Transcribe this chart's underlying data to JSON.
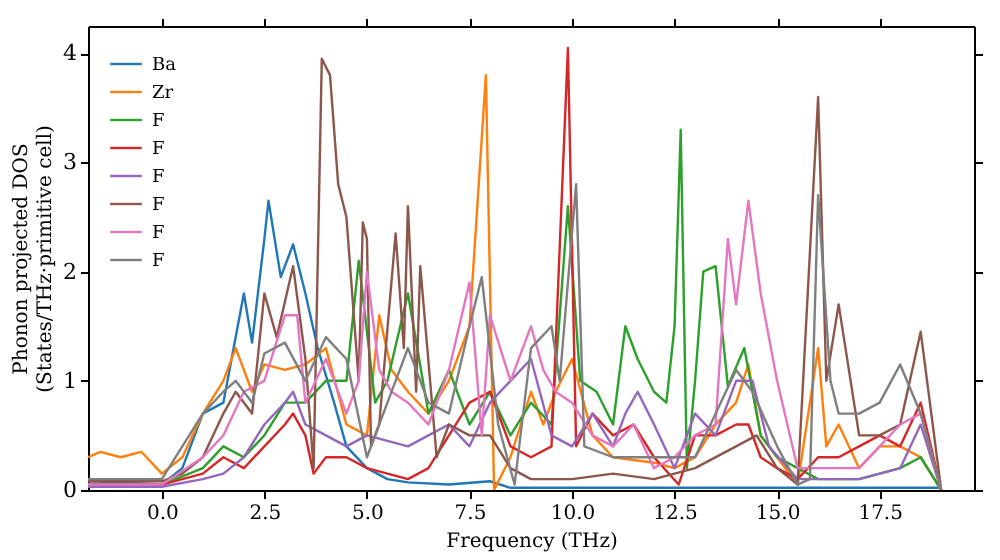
{
  "chart_data": {
    "type": "line",
    "xlabel": "Frequency (THz)",
    "ylabel": "Phonon projected DOS\n(States/THz·primitive cell)",
    "xlim": [
      -1.8,
      19.8
    ],
    "ylim": [
      0,
      4.25
    ],
    "xticks": [
      {
        "value": 0,
        "label": "0.0"
      },
      {
        "value": 2.5,
        "label": "2.5"
      },
      {
        "value": 5,
        "label": "5.0"
      },
      {
        "value": 7.5,
        "label": "7.5"
      },
      {
        "value": 10,
        "label": "10.0"
      },
      {
        "value": 12.5,
        "label": "12.5"
      },
      {
        "value": 15,
        "label": "15.0"
      },
      {
        "value": 17.5,
        "label": "17.5"
      }
    ],
    "yticks": [
      0,
      1,
      2,
      3,
      4
    ],
    "grid": false,
    "legend": "top left",
    "marker": "none",
    "line_style": "solid",
    "series": [
      {
        "name": "Ba",
        "color": "#1f77b4",
        "x": [
          -1.8,
          -1,
          0,
          0.5,
          1,
          1.5,
          2,
          2.2,
          2.5,
          2.6,
          2.9,
          3.2,
          3.5,
          3.8,
          4.2,
          4.5,
          5,
          5.5,
          6,
          7,
          8,
          8.5,
          9,
          12,
          19
        ],
        "values": [
          0.08,
          0.07,
          0.05,
          0.2,
          0.7,
          0.8,
          1.8,
          1.35,
          2.3,
          2.65,
          1.95,
          2.25,
          1.8,
          1.3,
          0.8,
          0.4,
          0.2,
          0.1,
          0.07,
          0.05,
          0.08,
          0.02,
          0.02,
          0.02,
          0.02
        ]
      },
      {
        "name": "Zr",
        "color": "#ff7f0e",
        "x": [
          -1.8,
          -1.5,
          -1,
          -0.5,
          0,
          0.5,
          1,
          1.5,
          1.8,
          2.2,
          2.5,
          3,
          3.5,
          4,
          4.5,
          5,
          5.3,
          5.6,
          6,
          6.5,
          7,
          7.5,
          7.9,
          8.1,
          8.5,
          9,
          9.3,
          9.6,
          10,
          10.5,
          11,
          12,
          12.5,
          13,
          13.5,
          14,
          14.3,
          14.6,
          15,
          15.5,
          16,
          16.2,
          16.5,
          17,
          17.5,
          18,
          18.5,
          19
        ],
        "values": [
          0.3,
          0.35,
          0.3,
          0.35,
          0.15,
          0.3,
          0.7,
          1.0,
          1.3,
          0.9,
          1.15,
          1.1,
          1.15,
          1.3,
          0.6,
          0.5,
          1.6,
          1.1,
          0.9,
          0.7,
          1.0,
          1.5,
          3.8,
          0.0,
          0.3,
          0.9,
          0.6,
          0.9,
          1.2,
          0.5,
          0.3,
          0.25,
          0.2,
          0.3,
          0.6,
          0.8,
          1.15,
          0.5,
          0.3,
          0.05,
          1.3,
          0.4,
          0.6,
          0.2,
          0.4,
          0.4,
          0.3,
          0
        ]
      },
      {
        "name": "F",
        "color": "#2ca02c",
        "x": [
          -1.8,
          0,
          1,
          1.5,
          2,
          2.5,
          3,
          3.5,
          4,
          4.5,
          4.8,
          5.2,
          5.5,
          6,
          6.5,
          7,
          7.5,
          8,
          8.5,
          9,
          9.5,
          9.9,
          10.2,
          10.6,
          11,
          11.3,
          11.6,
          12,
          12.3,
          12.5,
          12.65,
          12.8,
          13,
          13.2,
          13.5,
          13.8,
          14.2,
          14.6,
          15,
          15.5,
          16,
          17,
          18,
          18.5,
          19
        ],
        "values": [
          0.05,
          0.05,
          0.2,
          0.4,
          0.3,
          0.5,
          0.8,
          0.8,
          1.0,
          1.0,
          2.1,
          0.8,
          1.0,
          1.8,
          0.7,
          1.1,
          0.6,
          0.9,
          0.5,
          0.8,
          0.6,
          2.6,
          1.0,
          0.9,
          0.6,
          1.5,
          1.2,
          0.9,
          0.8,
          1.5,
          3.3,
          0.2,
          1.0,
          2.0,
          2.05,
          0.95,
          1.3,
          0.5,
          0.3,
          0.2,
          0.1,
          0.1,
          0.2,
          0.3,
          0
        ]
      },
      {
        "name": "F",
        "color": "#d62728",
        "x": [
          -1.8,
          0,
          1,
          1.5,
          2,
          2.5,
          3,
          3.2,
          3.5,
          3.7,
          4,
          4.5,
          5,
          6,
          6.5,
          7,
          7.5,
          8,
          8.5,
          9,
          9.5,
          9.9,
          10.1,
          10.5,
          11,
          11.5,
          12,
          12.6,
          13,
          13.5,
          14,
          14.3,
          14.6,
          15,
          15.5,
          16,
          16.5,
          17,
          17.5,
          18,
          18.5,
          19
        ],
        "values": [
          0.05,
          0.05,
          0.15,
          0.3,
          0.2,
          0.4,
          0.6,
          0.7,
          0.5,
          0.15,
          0.3,
          0.3,
          0.2,
          0.1,
          0.2,
          0.5,
          0.8,
          0.9,
          0.4,
          0.3,
          0.4,
          4.05,
          0.4,
          0.7,
          0.5,
          0.6,
          0.3,
          0.05,
          0.5,
          0.5,
          0.6,
          0.6,
          0.3,
          0.2,
          0.1,
          0.3,
          0.3,
          0.4,
          0.5,
          0.4,
          0.8,
          0
        ]
      },
      {
        "name": "F",
        "color": "#9467bd",
        "x": [
          -1.8,
          0,
          1,
          1.5,
          2,
          2.5,
          3,
          3.2,
          3.5,
          4,
          4.5,
          5,
          6,
          6.5,
          7,
          7.5,
          8,
          8.5,
          9,
          9.5,
          10,
          10.5,
          11,
          11.3,
          11.6,
          12,
          12.5,
          13,
          13.5,
          14,
          14.4,
          14.8,
          15.5,
          16,
          17,
          18,
          18.5,
          19
        ],
        "values": [
          0.03,
          0.03,
          0.1,
          0.15,
          0.3,
          0.6,
          0.8,
          0.9,
          0.6,
          0.5,
          0.4,
          0.5,
          0.4,
          0.5,
          0.6,
          0.4,
          0.8,
          1.0,
          1.2,
          0.5,
          0.4,
          0.7,
          0.4,
          0.7,
          0.9,
          0.6,
          0.2,
          0.7,
          0.5,
          1.0,
          1.0,
          0.4,
          0.1,
          0.1,
          0.1,
          0.2,
          0.6,
          0
        ]
      },
      {
        "name": "F",
        "color": "#8c564b",
        "x": [
          -1.8,
          0,
          0.5,
          1,
          1.5,
          1.8,
          2.2,
          2.5,
          2.8,
          3.2,
          3.5,
          3.7,
          3.9,
          4.1,
          4.3,
          4.5,
          4.8,
          4.9,
          5.0,
          5.1,
          5.3,
          5.7,
          5.9,
          6,
          6.2,
          6.3,
          6.7,
          7,
          7.5,
          8,
          8.5,
          9,
          10,
          11,
          12,
          13,
          14,
          14.5,
          15,
          15.5,
          16,
          16.2,
          16.5,
          17,
          17.5,
          18,
          18.5,
          19
        ],
        "values": [
          0.08,
          0.08,
          0.15,
          0.3,
          0.7,
          0.9,
          0.7,
          1.8,
          1.4,
          2.05,
          1.2,
          0.2,
          3.95,
          3.8,
          2.8,
          2.5,
          1.0,
          2.45,
          2.3,
          0.4,
          0.6,
          2.35,
          1.3,
          2.6,
          0.9,
          2.05,
          0.3,
          0.6,
          0.5,
          0.5,
          0.2,
          0.1,
          0.1,
          0.15,
          0.1,
          0.2,
          0.4,
          0.5,
          0.2,
          0.05,
          3.6,
          1.0,
          1.7,
          0.5,
          0.5,
          0.6,
          1.45,
          0
        ]
      },
      {
        "name": "F",
        "color": "#e377c2",
        "x": [
          -1.8,
          0,
          1,
          1.5,
          2,
          2.5,
          3,
          3.3,
          3.5,
          4,
          4.5,
          4.8,
          5,
          5.3,
          5.6,
          6,
          6.5,
          7,
          7.5,
          7.8,
          8,
          8.5,
          9,
          9.3,
          9.6,
          10,
          10.5,
          11,
          11.5,
          12,
          12.5,
          13,
          13.5,
          13.8,
          14,
          14.3,
          14.6,
          15,
          15.5,
          16,
          17,
          17.5,
          18,
          18.5,
          19
        ],
        "values": [
          0.05,
          0.05,
          0.3,
          0.5,
          0.9,
          1.0,
          1.6,
          1.6,
          0.8,
          1.2,
          0.7,
          1.0,
          2.0,
          1.1,
          0.9,
          0.8,
          0.6,
          1.1,
          1.9,
          0.5,
          1.6,
          1.0,
          1.5,
          1.1,
          0.9,
          0.8,
          0.5,
          0.4,
          0.6,
          0.2,
          0.3,
          0.5,
          0.6,
          2.3,
          1.7,
          2.65,
          1.8,
          1.0,
          0.2,
          0.2,
          0.2,
          0.4,
          0.6,
          0.7,
          0
        ]
      },
      {
        "name": "F",
        "color": "#7f7f7f",
        "x": [
          -1.8,
          0,
          0.5,
          1,
          1.5,
          1.8,
          2.2,
          2.5,
          3,
          3.5,
          4,
          4.5,
          5,
          5.5,
          6,
          6.5,
          7,
          7.5,
          7.8,
          8.2,
          8.6,
          9,
          9.5,
          9.7,
          10.1,
          10.3,
          11,
          12,
          12.5,
          13,
          14,
          14.4,
          15,
          15.5,
          15.8,
          16,
          16.3,
          16.5,
          17,
          17.5,
          18,
          18.5,
          19
        ],
        "values": [
          0.1,
          0.1,
          0.4,
          0.7,
          0.9,
          1.0,
          0.8,
          1.25,
          1.35,
          1.0,
          1.4,
          1.2,
          0.3,
          0.8,
          1.3,
          0.8,
          0.7,
          1.5,
          1.95,
          0.6,
          0.05,
          1.3,
          1.5,
          1.0,
          2.8,
          0.4,
          0.3,
          0.3,
          0.3,
          0.3,
          1.1,
          0.9,
          0.4,
          0.05,
          0.1,
          2.7,
          1.0,
          0.7,
          0.7,
          0.8,
          1.15,
          0.7,
          0
        ]
      }
    ]
  }
}
